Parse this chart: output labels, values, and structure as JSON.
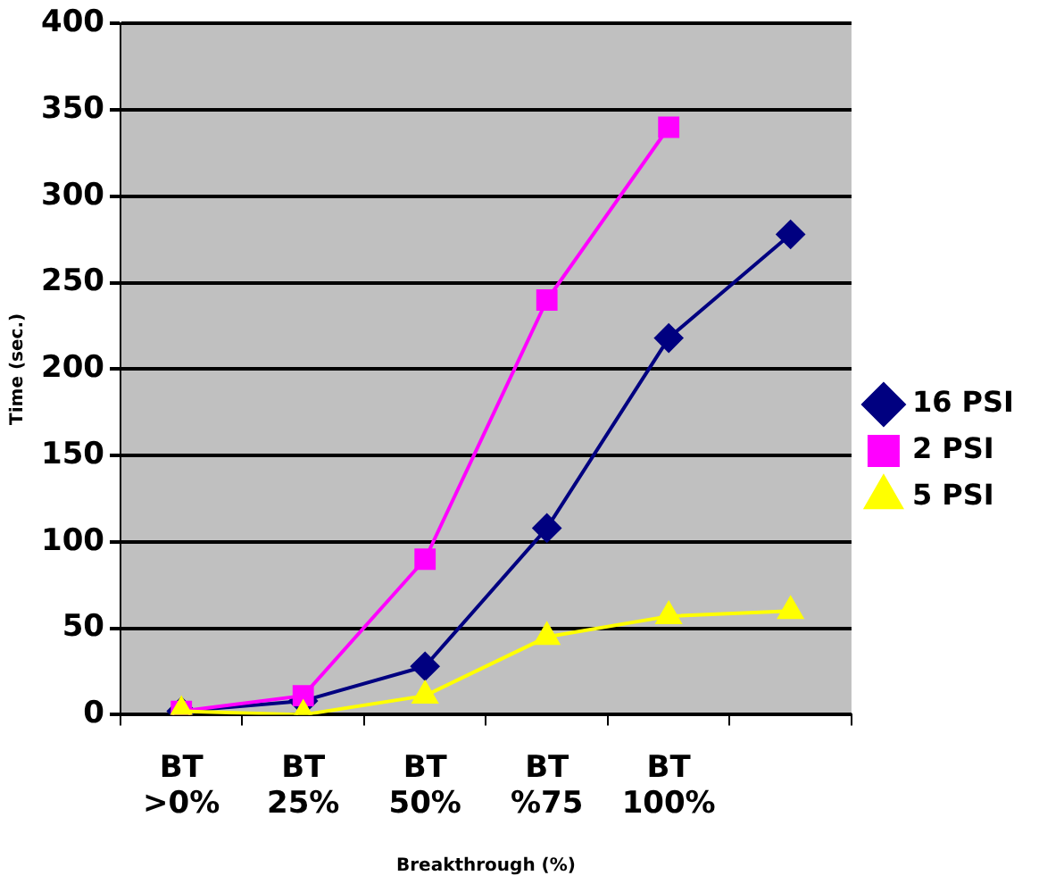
{
  "chart_data": {
    "type": "line",
    "xlabel": "Breakthrough (%)",
    "ylabel": "Time (sec.)",
    "categories": [
      "BT >0%",
      "BT 25%",
      "BT 50%",
      "BT %75",
      "BT 100%",
      null
    ],
    "series": [
      {
        "name": "16 PSI",
        "color": "#000080",
        "marker": "diamond",
        "values": [
          2,
          8,
          28,
          108,
          218,
          278
        ]
      },
      {
        "name": "2 PSI",
        "color": "#ff00ff",
        "marker": "square",
        "values": [
          2,
          11,
          90,
          240,
          340,
          null
        ]
      },
      {
        "name": "5 PSI",
        "color": "#ffff00",
        "marker": "triangle",
        "values": [
          2,
          0,
          11,
          45,
          57,
          60
        ]
      }
    ],
    "ylim": [
      0,
      400
    ],
    "yticks": [
      0,
      50,
      100,
      150,
      200,
      250,
      300,
      350,
      400
    ],
    "grid": "y",
    "legend": "right"
  }
}
